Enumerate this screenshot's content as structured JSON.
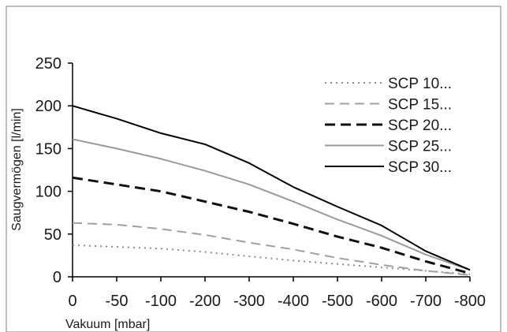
{
  "chart_data": {
    "type": "line",
    "title": "",
    "xlabel": "Vakuum [mbar]",
    "ylabel": "Saugvermögen [l/min]",
    "categories": [
      "0",
      "-50",
      "-100",
      "-200",
      "-300",
      "-400",
      "-500",
      "-600",
      "-700",
      "-800"
    ],
    "ylim": [
      0,
      250
    ],
    "yticks": [
      "0",
      "50",
      "100",
      "150",
      "200",
      "250"
    ],
    "grid": false,
    "legend_position": "top-right",
    "series": [
      {
        "name": "SCP 10...",
        "style": "dotted",
        "color": "#8c8c8c",
        "values": [
          37,
          35,
          33,
          29,
          24,
          19,
          15,
          11,
          7,
          3
        ]
      },
      {
        "name": "SCP 15...",
        "style": "dashed-long",
        "color": "#a0a0a0",
        "values": [
          63,
          61,
          56,
          49,
          40,
          32,
          22,
          14,
          7,
          2
        ]
      },
      {
        "name": "SCP 20...",
        "style": "dashed-bold",
        "color": "#111111",
        "values": [
          116,
          108,
          100,
          88,
          76,
          62,
          47,
          34,
          18,
          4
        ]
      },
      {
        "name": "SCP 25...",
        "style": "solid",
        "color": "#9a9a9a",
        "values": [
          161,
          150,
          138,
          124,
          108,
          88,
          67,
          48,
          26,
          8
        ]
      },
      {
        "name": "SCP 30...",
        "style": "solid",
        "color": "#000000",
        "values": [
          200,
          185,
          168,
          155,
          133,
          105,
          82,
          60,
          30,
          8
        ]
      }
    ]
  }
}
